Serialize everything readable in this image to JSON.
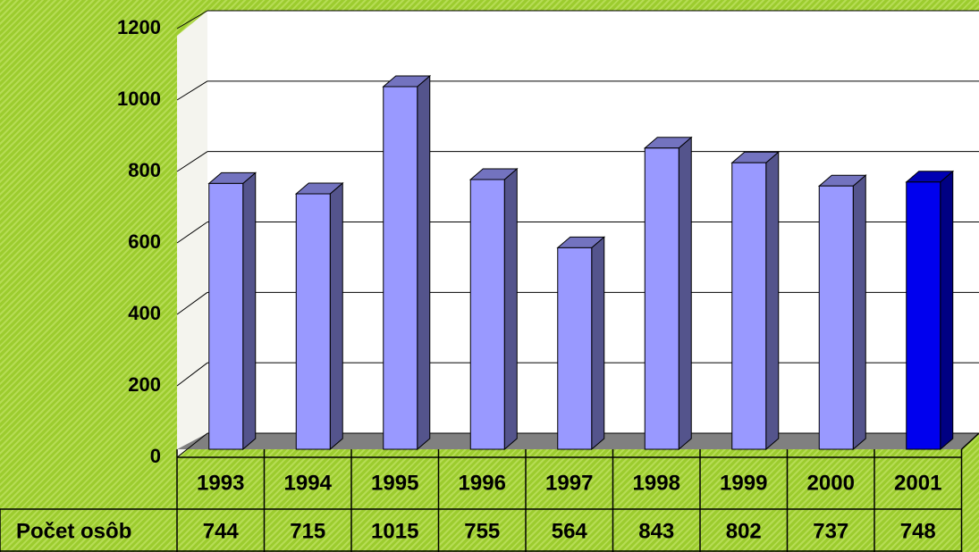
{
  "chart_data": {
    "type": "bar3d",
    "categories": [
      "1993",
      "1994",
      "1995",
      "1996",
      "1997",
      "1998",
      "1999",
      "2000",
      "2001"
    ],
    "series": [
      {
        "name": "Počet osôb",
        "values": [
          744,
          715,
          1015,
          755,
          564,
          843,
          802,
          737,
          748
        ],
        "colors": [
          "#9999ff",
          "#9999ff",
          "#9999ff",
          "#9999ff",
          "#9999ff",
          "#9999ff",
          "#9999ff",
          "#9999ff",
          "#0000ee"
        ]
      }
    ],
    "ylim": [
      0,
      1200
    ],
    "yticks": [
      0,
      200,
      400,
      600,
      800,
      1000,
      1200
    ],
    "grid": true
  }
}
